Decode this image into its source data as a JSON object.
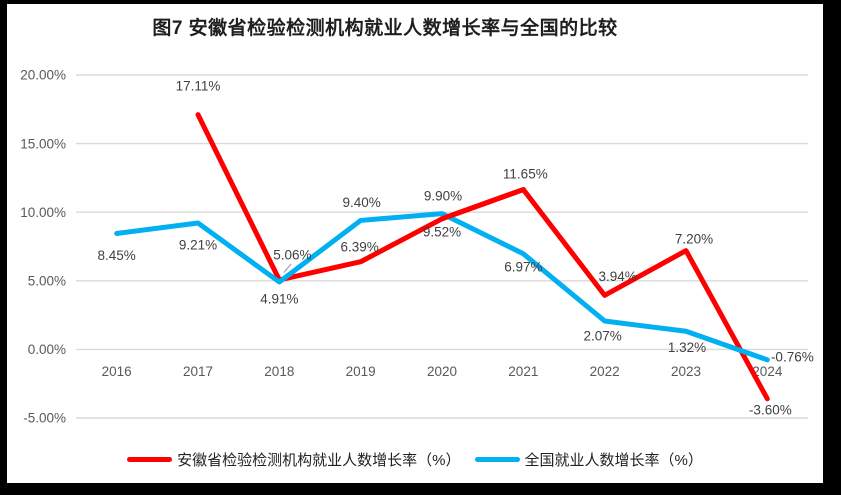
{
  "title": "图7 安徽省检验检测机构就业人数增长率与全国的比较",
  "chart_data": {
    "type": "line",
    "categories": [
      "2016",
      "2017",
      "2018",
      "2019",
      "2020",
      "2021",
      "2022",
      "2023",
      "2024"
    ],
    "series": [
      {
        "name": "安徽省检验检测机构就业人数增长率（%）",
        "color": "#FF0000",
        "values": [
          null,
          17.11,
          5.06,
          6.39,
          9.52,
          11.65,
          3.94,
          7.2,
          -3.6
        ],
        "labels": [
          "",
          "17.11%",
          "5.06%",
          "6.39%",
          "9.52%",
          "11.65%",
          "3.94%",
          "7.20%",
          "-3.60%"
        ]
      },
      {
        "name": "全国就业人数增长率（%）",
        "color": "#00B0F0",
        "values": [
          8.45,
          9.21,
          4.91,
          9.4,
          9.9,
          6.97,
          2.07,
          1.32,
          -0.76
        ],
        "labels": [
          "8.45%",
          "9.21%",
          "4.91%",
          "9.40%",
          "9.90%",
          "6.97%",
          "2.07%",
          "1.32%",
          "-0.76%"
        ]
      }
    ],
    "y_axis": {
      "ticks": [
        "20.00%",
        "15.00%",
        "10.00%",
        "5.00%",
        "0.00%",
        "-5.00%"
      ],
      "max": 20,
      "min": -5,
      "step": 5
    },
    "grid": true,
    "legend_position": "bottom",
    "colors": {
      "grid": "#D9D9D9",
      "axis_text": "#595959",
      "label_text": "#404040",
      "leader_line": "#A6A6A6",
      "frame": "#000000"
    }
  }
}
